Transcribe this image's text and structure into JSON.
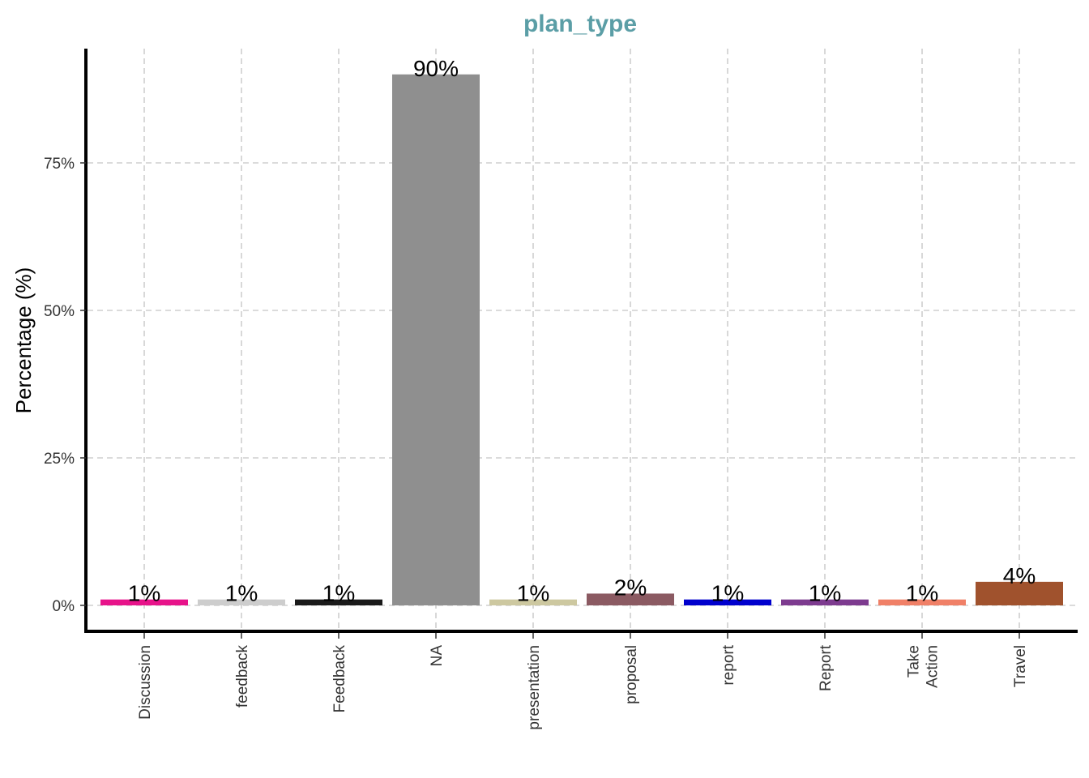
{
  "chart_data": {
    "type": "bar",
    "title": "plan_type",
    "title_color": "#5b9ea6",
    "xlabel": "",
    "ylabel": "Percentage (%)",
    "ylim": [
      0,
      90
    ],
    "yticks": [
      0,
      25,
      50,
      75
    ],
    "ytick_labels": [
      "0%",
      "25%",
      "50%",
      "75%"
    ],
    "grid": true,
    "categories": [
      [
        "Discussion"
      ],
      [
        "feedback"
      ],
      [
        "Feedback"
      ],
      [
        "NA"
      ],
      [
        "presentation"
      ],
      [
        "proposal"
      ],
      [
        "report"
      ],
      [
        "Report"
      ],
      [
        "Take",
        "Action"
      ],
      [
        "Travel"
      ]
    ],
    "values": [
      1,
      1,
      1,
      90,
      1,
      2,
      1,
      1,
      1,
      4
    ],
    "data_labels": [
      "1%",
      "1%",
      "1%",
      "90%",
      "1%",
      "2%",
      "1%",
      "1%",
      "1%",
      "4%"
    ],
    "colors": [
      "#e7138a",
      "#cdcdcd",
      "#1a1a1a",
      "#8f8f8f",
      "#cdc8a0",
      "#8b5a62",
      "#0000cd",
      "#7d3b8f",
      "#f08067",
      "#a0522d"
    ]
  }
}
